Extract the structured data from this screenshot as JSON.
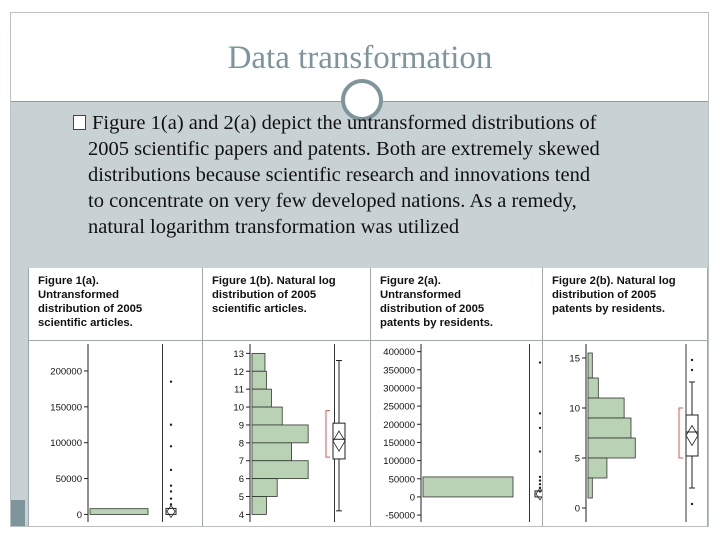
{
  "slide": {
    "title": "Data transformation",
    "bullet_lines": [
      "Figure 1(a) and 2(a) depict the untransformed distributions of",
      "2005 scientific papers and patents. Both are extremely skewed",
      "distributions because scientific research and innovations tend",
      "to concentrate on very few developed nations. As a remedy,",
      "natural logarithm transformation was utilized"
    ]
  },
  "colors": {
    "title": "#7d959b",
    "band": "#c8d1d4",
    "bar": "#b9d2b4",
    "bar_edge": "#333333",
    "bracket": "#e05050"
  },
  "captions": [
    [
      "Figure 1(a).",
      "Untransformed",
      "distribution of 2005",
      "scientific articles."
    ],
    [
      "Figure 1(b). Natural log",
      "distribution of 2005",
      "scientific articles."
    ],
    [
      "Figure 2(a).",
      "Untransformed",
      "distribution of 2005",
      "patents by residents."
    ],
    [
      "Figure 2(b). Natural log",
      "distribution of 2005",
      "patents by residents."
    ]
  ],
  "chart_data": [
    {
      "type": "bar",
      "orientation": "horizontal",
      "ticks": [
        "200000",
        "150000",
        "100000",
        "50000",
        "0"
      ],
      "tick_values": [
        200000,
        150000,
        100000,
        50000,
        0
      ],
      "ylim": [
        -5000,
        232000
      ],
      "bins": [
        [
          0,
          8000,
          1.0
        ]
      ],
      "outliers": [
        185000,
        125000,
        95000,
        62000,
        40000,
        32000,
        22000,
        14000
      ]
    },
    {
      "type": "bar",
      "orientation": "horizontal",
      "ticks": [
        "13",
        "12",
        "11",
        "10",
        "9",
        "8",
        "7",
        "6",
        "5",
        "4"
      ],
      "tick_values": [
        13,
        12,
        11,
        10,
        9,
        8,
        7,
        6,
        5,
        4
      ],
      "ylim": [
        3.8,
        13.3
      ],
      "bins": [
        [
          12,
          13,
          0.18
        ],
        [
          11,
          12,
          0.2
        ],
        [
          10,
          11,
          0.27
        ],
        [
          9,
          10,
          0.42
        ],
        [
          8,
          9,
          0.78
        ],
        [
          7,
          8,
          0.55
        ],
        [
          6,
          7,
          0.78
        ],
        [
          5,
          6,
          0.35
        ],
        [
          4,
          5,
          0.2
        ]
      ],
      "box": {
        "q1": 7.1,
        "median": 8.2,
        "q3": 9.1,
        "min": 4.2,
        "max": 12.6
      },
      "bracket": [
        7.2,
        9.8
      ]
    },
    {
      "type": "bar",
      "orientation": "horizontal",
      "ticks": [
        "400000",
        "350000",
        "300000",
        "250000",
        "200000",
        "150000",
        "100000",
        "50000",
        "0",
        "-50000"
      ],
      "tick_values": [
        400000,
        350000,
        300000,
        250000,
        200000,
        150000,
        100000,
        50000,
        0,
        -50000
      ],
      "ylim": [
        -58000,
        410000
      ],
      "bins": [
        [
          0,
          55000,
          1.0
        ]
      ],
      "outliers": [
        370000,
        230000,
        190000,
        125000,
        55000,
        45000,
        35000,
        25000,
        15000
      ]
    },
    {
      "type": "bar",
      "orientation": "horizontal",
      "ticks": [
        "15",
        "10",
        "5",
        "0"
      ],
      "tick_values": [
        15,
        10,
        5,
        0
      ],
      "ylim": [
        -1,
        16
      ],
      "bins": [
        [
          13,
          15.5,
          0.05
        ],
        [
          11,
          13,
          0.12
        ],
        [
          9,
          11,
          0.42
        ],
        [
          7,
          9,
          0.5
        ],
        [
          5,
          7,
          0.55
        ],
        [
          3,
          5,
          0.22
        ],
        [
          1,
          3,
          0.05
        ]
      ],
      "box": {
        "q1": 5.2,
        "median": 7.6,
        "q3": 9.3,
        "min": 2.0,
        "max": 12.6
      },
      "outliers": [
        14.8,
        13.8,
        0.4
      ],
      "bracket": [
        5.0,
        10.0
      ]
    }
  ]
}
